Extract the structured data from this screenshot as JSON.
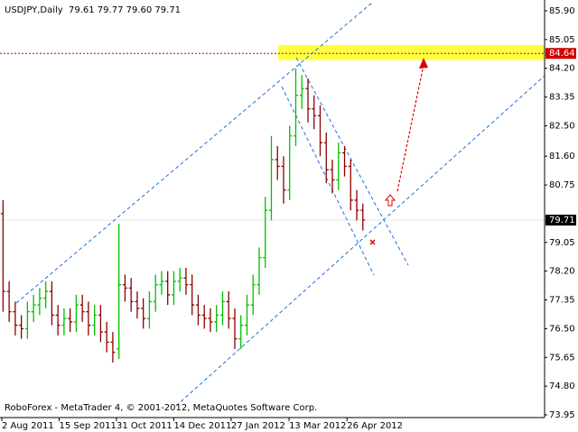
{
  "chart_data": {
    "type": "ohlc",
    "title": "USDJPY,Daily",
    "ohlc_label": "79.61 79.77 79.60 79.71",
    "footer": "RoboForex - MetaTrader 4, © 2001-2012, MetaQuotes Software Corp.",
    "up_color": "#00c000",
    "down_color": "#8b0000",
    "x": [
      0,
      1,
      2,
      3,
      4,
      5,
      6,
      7,
      8,
      9,
      10,
      11,
      12,
      13,
      14,
      15,
      16,
      17,
      18,
      19,
      20,
      21,
      22,
      23,
      24,
      25,
      26,
      27,
      28,
      29,
      30,
      31,
      32,
      33,
      34,
      35,
      36,
      37,
      38,
      39,
      40,
      41,
      42,
      43,
      44,
      45,
      46,
      47,
      48,
      49,
      50,
      51,
      52,
      53,
      54,
      55,
      56,
      57,
      58,
      59
    ],
    "open": [
      79.9,
      77.6,
      77.0,
      76.6,
      76.5,
      77.0,
      77.2,
      77.4,
      77.6,
      76.9,
      76.6,
      76.8,
      76.7,
      77.2,
      77.0,
      76.6,
      76.9,
      76.4,
      76.1,
      75.9,
      77.8,
      77.7,
      77.3,
      77.1,
      76.8,
      77.3,
      77.8,
      77.9,
      77.5,
      77.9,
      78.0,
      77.8,
      77.2,
      76.9,
      76.8,
      76.7,
      76.9,
      77.3,
      76.8,
      76.2,
      76.6,
      77.2,
      77.8,
      78.6,
      80.0,
      81.5,
      81.3,
      80.6,
      82.2,
      83.4,
      83.6,
      83.0,
      82.8,
      82.0,
      81.2,
      80.9,
      81.7,
      81.3,
      80.3,
      80.0
    ],
    "high": [
      80.3,
      77.9,
      77.3,
      76.9,
      77.3,
      77.5,
      77.7,
      77.9,
      77.9,
      77.2,
      77.1,
      77.1,
      77.5,
      77.5,
      77.3,
      77.2,
      77.2,
      76.7,
      76.4,
      79.6,
      78.1,
      78.0,
      77.6,
      77.4,
      77.6,
      78.1,
      78.2,
      78.2,
      78.2,
      78.3,
      78.3,
      78.1,
      77.5,
      77.2,
      77.1,
      77.2,
      77.6,
      77.6,
      77.1,
      76.9,
      77.5,
      78.1,
      78.9,
      80.4,
      82.2,
      81.9,
      81.6,
      82.5,
      84.2,
      84.0,
      83.9,
      83.4,
      83.1,
      82.3,
      81.5,
      82.0,
      81.9,
      81.5,
      80.6,
      80.2
    ],
    "low": [
      77.0,
      76.7,
      76.3,
      76.2,
      76.2,
      76.7,
      76.9,
      77.1,
      76.6,
      76.3,
      76.3,
      76.4,
      76.4,
      76.7,
      76.3,
      76.3,
      76.1,
      75.8,
      75.5,
      75.6,
      77.3,
      77.0,
      76.8,
      76.5,
      76.5,
      77.0,
      77.5,
      77.2,
      77.2,
      77.6,
      77.5,
      76.9,
      76.6,
      76.5,
      76.4,
      76.4,
      76.6,
      76.5,
      75.9,
      75.9,
      76.3,
      76.9,
      77.5,
      78.3,
      79.7,
      80.9,
      80.2,
      80.3,
      81.9,
      83.0,
      82.6,
      82.4,
      81.6,
      80.8,
      80.5,
      80.6,
      81.0,
      80.0,
      79.7,
      79.4
    ],
    "close": [
      77.6,
      77.0,
      76.6,
      76.5,
      77.0,
      77.2,
      77.4,
      77.6,
      76.9,
      76.6,
      76.8,
      76.7,
      77.2,
      77.0,
      76.6,
      76.9,
      76.4,
      76.1,
      75.8,
      77.8,
      77.7,
      77.3,
      77.1,
      76.8,
      77.3,
      77.8,
      77.9,
      77.5,
      77.9,
      78.0,
      77.8,
      77.2,
      76.9,
      76.8,
      76.7,
      76.9,
      77.3,
      76.8,
      76.2,
      76.6,
      77.2,
      77.8,
      78.6,
      80.0,
      81.5,
      81.3,
      80.6,
      82.2,
      83.4,
      83.6,
      83.0,
      82.8,
      82.0,
      81.2,
      80.9,
      81.7,
      81.3,
      80.3,
      80.0,
      79.71
    ],
    "xlim": [
      -0.5,
      88.8
    ],
    "xticks": [
      {
        "value": -0.2,
        "label": "2 Aug 2011"
      },
      {
        "value": 9.2,
        "label": "15 Sep 2011"
      },
      {
        "value": 18.6,
        "label": "31 Oct 2011"
      },
      {
        "value": 28,
        "label": "14 Dec 2011"
      },
      {
        "value": 37.4,
        "label": "27 Jan 2012"
      },
      {
        "value": 46.9,
        "label": "13 Mar 2012"
      },
      {
        "value": 56.4,
        "label": "26 Apr 2012"
      }
    ],
    "ylim": [
      73.87,
      86.22
    ],
    "yticks": [
      {
        "value": 85.9,
        "label": "85.90"
      },
      {
        "value": 85.05,
        "label": "85.05"
      },
      {
        "value": 84.2,
        "label": "84.20"
      },
      {
        "value": 83.35,
        "label": "83.35"
      },
      {
        "value": 82.5,
        "label": "82.50"
      },
      {
        "value": 81.6,
        "label": "81.60"
      },
      {
        "value": 80.75,
        "label": "80.75"
      },
      {
        "value": 79.05,
        "label": "79.05"
      },
      {
        "value": 78.2,
        "label": "78.20"
      },
      {
        "value": 77.35,
        "label": "77.35"
      },
      {
        "value": 76.5,
        "label": "76.50"
      },
      {
        "value": 75.65,
        "label": "75.65"
      },
      {
        "value": 74.8,
        "label": "74.80"
      },
      {
        "value": 73.95,
        "label": "73.95"
      }
    ],
    "current_price": {
      "value": 79.71,
      "label": "79.71"
    },
    "target_level": {
      "value": 84.64,
      "label": "84.64"
    },
    "target_zone": [
      84.44,
      84.89
    ]
  }
}
